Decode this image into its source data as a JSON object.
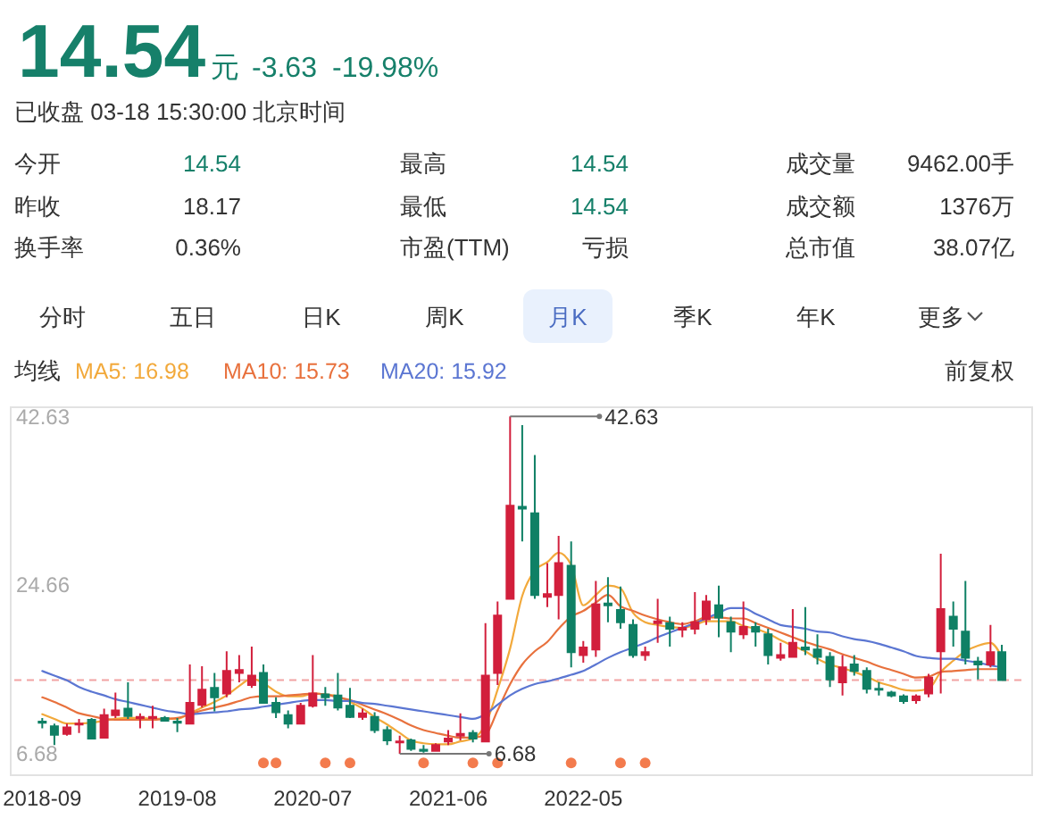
{
  "chart_data": {
    "type": "candlestick",
    "title": "14.54",
    "subtitle": "已收盘 03-18 15:30:00 北京时间",
    "legend_title": "均线",
    "legend": "top left",
    "annotations": [
      "元",
      "-3.63",
      "-19.98%",
      "今开",
      "14.54",
      "最高",
      "14.54",
      "成交量",
      "9462.00手",
      "昨收",
      "18.17",
      "最低",
      "14.54",
      "成交额",
      "1376万",
      "换手率",
      "0.36%",
      "市盈(TTM)",
      "亏损",
      "总市值",
      "38.07亿",
      "分时",
      "五日",
      "日K",
      "周K",
      "月K",
      "季K",
      "年K",
      "更多",
      "前复权",
      {
        "text": "42.63",
        "x": "2021-11",
        "y": 42.63
      },
      {
        "text": "6.68",
        "x": "2021-02",
        "y": 6.68
      }
    ],
    "x": [
      "2018-09",
      "2018-10",
      "2018-11",
      "2018-12",
      "2019-01",
      "2019-02",
      "2019-03",
      "2019-04",
      "2019-05",
      "2019-06",
      "2019-07",
      "2019-08",
      "2019-09",
      "2019-10",
      "2019-11",
      "2019-12",
      "2020-01",
      "2020-02",
      "2020-03",
      "2020-04",
      "2020-05",
      "2020-06",
      "2020-07",
      "2020-08",
      "2020-09",
      "2020-10",
      "2020-11",
      "2020-12",
      "2021-01",
      "2021-02",
      "2021-03",
      "2021-04",
      "2021-05",
      "2021-06",
      "2021-07",
      "2021-08",
      "2021-09",
      "2021-10",
      "2021-11",
      "2021-12",
      "2022-01",
      "2022-02",
      "2022-03",
      "2022-04",
      "2022-05",
      "2022-06",
      "2022-07",
      "2022-08",
      "2022-09",
      "2022-10",
      "2022-11",
      "2022-12",
      "2023-01",
      "2023-02",
      "2023-03",
      "2023-04",
      "2023-05",
      "2023-06",
      "2023-07",
      "2023-08",
      "2023-09",
      "2023-10",
      "2023-11",
      "2023-12",
      "2024-01",
      "2024-02",
      "2024-03",
      "2024-04",
      "2024-05",
      "2024-06",
      "2024-07",
      "2024-08",
      "2024-09",
      "2024-10",
      "2024-11",
      "2024-12",
      "2025-01",
      "2025-02",
      "2025-03"
    ],
    "ohlc": [
      [
        10.1,
        10.5,
        9.4,
        10.0
      ],
      [
        9.6,
        9.9,
        7.6,
        8.7
      ],
      [
        8.8,
        9.9,
        8.6,
        9.5
      ],
      [
        9.8,
        10.4,
        8.9,
        9.9
      ],
      [
        10.3,
        10.5,
        8.2,
        8.3
      ],
      [
        8.4,
        11.5,
        8.3,
        10.8
      ],
      [
        10.8,
        13.2,
        10.5,
        11.3
      ],
      [
        11.5,
        14.3,
        10.4,
        10.7
      ],
      [
        10.5,
        11.0,
        9.4,
        10.6
      ],
      [
        10.5,
        11.8,
        9.4,
        10.6
      ],
      [
        10.5,
        10.7,
        10.1,
        10.2
      ],
      [
        10.1,
        10.5,
        9.0,
        10.0
      ],
      [
        9.9,
        16.2,
        9.8,
        12.1
      ],
      [
        11.9,
        16.0,
        11.6,
        13.5
      ],
      [
        13.7,
        15.3,
        11.2,
        12.7
      ],
      [
        13.1,
        17.6,
        12.7,
        15.5
      ],
      [
        15.3,
        17.2,
        14.3,
        15.6
      ],
      [
        14.0,
        18.1,
        13.7,
        15.0
      ],
      [
        15.3,
        16.2,
        12.0,
        12.1
      ],
      [
        12.1,
        12.7,
        10.5,
        11.1
      ],
      [
        10.8,
        11.3,
        9.4,
        9.9
      ],
      [
        9.9,
        12.1,
        9.8,
        11.8
      ],
      [
        11.8,
        17.2,
        11.6,
        13.1
      ],
      [
        13.0,
        13.8,
        11.8,
        12.7
      ],
      [
        12.9,
        15.3,
        11.3,
        11.6
      ],
      [
        11.8,
        13.7,
        10.5,
        10.6
      ],
      [
        10.6,
        11.5,
        10.3,
        11.0
      ],
      [
        10.6,
        11.1,
        8.9,
        9.2
      ],
      [
        9.2,
        9.6,
        7.6,
        8.1
      ],
      [
        7.9,
        8.6,
        6.68,
        8.0
      ],
      [
        8.1,
        8.3,
        7.0,
        7.2
      ],
      [
        7.1,
        7.6,
        6.8,
        7.0
      ],
      [
        7.0,
        7.8,
        6.9,
        7.6
      ],
      [
        8.0,
        9.2,
        7.6,
        8.3
      ],
      [
        8.6,
        11.0,
        8.1,
        8.8
      ],
      [
        8.9,
        9.2,
        7.9,
        8.3
      ],
      [
        8.0,
        20.6,
        7.9,
        15.0
      ],
      [
        15.3,
        22.9,
        14.0,
        21.4
      ],
      [
        23.2,
        42.63,
        23.1,
        33.1
      ],
      [
        33.0,
        41.7,
        29.3,
        32.8
      ],
      [
        32.3,
        38.5,
        23.2,
        23.6
      ],
      [
        23.4,
        27.0,
        22.3,
        23.7
      ],
      [
        23.6,
        29.9,
        21.0,
        27.0
      ],
      [
        26.7,
        29.3,
        15.9,
        17.5
      ],
      [
        17.2,
        18.7,
        16.4,
        18.0
      ],
      [
        17.8,
        25.1,
        17.0,
        22.6
      ],
      [
        22.7,
        25.5,
        20.7,
        22.5
      ],
      [
        22.0,
        24.5,
        20.0,
        20.7
      ],
      [
        20.4,
        21.0,
        16.9,
        17.2
      ],
      [
        17.2,
        18.1,
        16.6,
        17.5
      ],
      [
        20.6,
        23.2,
        18.5,
        20.8
      ],
      [
        20.6,
        21.3,
        18.1,
        20.0
      ],
      [
        19.9,
        20.7,
        19.1,
        20.1
      ],
      [
        20.0,
        23.9,
        19.4,
        20.7
      ],
      [
        21.0,
        23.6,
        20.4,
        22.9
      ],
      [
        22.5,
        24.6,
        19.1,
        21.2
      ],
      [
        20.7,
        21.3,
        17.5,
        19.7
      ],
      [
        19.4,
        22.9,
        18.9,
        20.2
      ],
      [
        20.2,
        20.7,
        18.1,
        19.7
      ],
      [
        19.4,
        20.0,
        16.2,
        17.2
      ],
      [
        16.9,
        18.5,
        16.6,
        17.2
      ],
      [
        17.0,
        22.1,
        16.9,
        18.5
      ],
      [
        18.0,
        22.3,
        17.2,
        17.8
      ],
      [
        17.8,
        19.4,
        16.2,
        17.0
      ],
      [
        17.0,
        17.5,
        13.8,
        14.6
      ],
      [
        14.3,
        17.2,
        12.9,
        15.9
      ],
      [
        16.2,
        17.2,
        15.0,
        15.5
      ],
      [
        15.5,
        15.9,
        13.1,
        13.6
      ],
      [
        13.6,
        14.3,
        12.9,
        13.5
      ],
      [
        13.2,
        13.4,
        12.7,
        12.9
      ],
      [
        12.8,
        13.0,
        12.0,
        12.3
      ],
      [
        12.4,
        13.0,
        12.0,
        12.8
      ],
      [
        13.1,
        15.2,
        12.7,
        14.8
      ],
      [
        17.6,
        28.0,
        13.1,
        22.1
      ],
      [
        21.3,
        22.9,
        18.1,
        20.0
      ],
      [
        19.7,
        25.1,
        16.2,
        16.9
      ],
      [
        16.5,
        17.0,
        14.6,
        16.2
      ],
      [
        16.2,
        20.4,
        15.9,
        17.5
      ],
      [
        17.5,
        18.3,
        14.5,
        14.54
      ]
    ],
    "colors": [
      "#0f8065",
      "#0f8065",
      "#d21f3c",
      "#d21f3c",
      "#0f8065",
      "#d21f3c",
      "#d21f3c",
      "#0f8065",
      "#d21f3c",
      "#d21f3c",
      "#0f8065",
      "#0f8065",
      "#d21f3c",
      "#d21f3c",
      "#0f8065",
      "#d21f3c",
      "#d21f3c",
      "#d21f3c",
      "#0f8065",
      "#0f8065",
      "#0f8065",
      "#d21f3c",
      "#d21f3c",
      "#0f8065",
      "#0f8065",
      "#0f8065",
      "#d21f3c",
      "#0f8065",
      "#0f8065",
      "#d21f3c",
      "#0f8065",
      "#0f8065",
      "#d21f3c",
      "#d21f3c",
      "#d21f3c",
      "#0f8065",
      "#d21f3c",
      "#d21f3c",
      "#d21f3c",
      "#0f8065",
      "#0f8065",
      "#d21f3c",
      "#d21f3c",
      "#0f8065",
      "#d21f3c",
      "#d21f3c",
      "#0f8065",
      "#0f8065",
      "#0f8065",
      "#d21f3c",
      "#d21f3c",
      "#0f8065",
      "#d21f3c",
      "#d21f3c",
      "#d21f3c",
      "#0f8065",
      "#0f8065",
      "#d21f3c",
      "#0f8065",
      "#0f8065",
      "#d21f3c",
      "#d21f3c",
      "#0f8065",
      "#0f8065",
      "#0f8065",
      "#d21f3c",
      "#0f8065",
      "#0f8065",
      "#0f8065",
      "#0f8065",
      "#0f8065",
      "#d21f3c",
      "#d21f3c",
      "#d21f3c",
      "#0f8065",
      "#0f8065",
      "#0f8065",
      "#d21f3c",
      "#0f8065"
    ],
    "series": [
      {
        "type": "line",
        "name": "MA5: 16.98",
        "color": "#f2a93b",
        "values": [
          10.9,
          10.4,
          9.9,
          9.9,
          10.0,
          10.2,
          10.4,
          10.5,
          10.5,
          10.4,
          10.4,
          10.4,
          11.0,
          11.6,
          12.2,
          12.9,
          13.9,
          14.7,
          14.2,
          13.3,
          12.8,
          12.8,
          13.1,
          13.0,
          12.8,
          12.2,
          11.5,
          10.6,
          9.8,
          8.9,
          8.1,
          7.8,
          7.7,
          7.7,
          8.0,
          8.3,
          9.8,
          13.5,
          17.9,
          23.5,
          26.2,
          27.1,
          28.1,
          26.8,
          22.5,
          23.6,
          24.6,
          24.3,
          21.7,
          20.7,
          20.4,
          20.2,
          20.1,
          20.4,
          20.8,
          20.8,
          20.8,
          20.3,
          20.0,
          19.5,
          18.8,
          18.2,
          17.6,
          16.8,
          16.2,
          15.8,
          15.4,
          14.9,
          14.3,
          13.9,
          13.5,
          13.4,
          13.6,
          15.4,
          16.6,
          17.6,
          18.2,
          18.5,
          17.0
        ]
      },
      {
        "type": "line",
        "name": "MA10: 15.73",
        "color": "#e8713d",
        "values": [
          12.7,
          12.2,
          11.6,
          11.0,
          10.7,
          10.4,
          10.3,
          10.3,
          10.3,
          10.3,
          10.4,
          10.5,
          10.9,
          11.3,
          11.6,
          11.9,
          12.3,
          12.7,
          12.8,
          12.8,
          12.9,
          13.0,
          13.1,
          13.0,
          12.7,
          12.4,
          11.9,
          11.4,
          10.9,
          10.3,
          9.7,
          9.2,
          8.9,
          8.6,
          8.4,
          8.4,
          8.7,
          11.3,
          14.1,
          16.2,
          17.6,
          18.6,
          20.0,
          21.3,
          21.9,
          22.8,
          23.6,
          22.4,
          21.9,
          21.4,
          21.0,
          20.7,
          20.5,
          20.8,
          21.2,
          21.2,
          21.1,
          21.1,
          20.6,
          20.1,
          19.6,
          19.1,
          18.6,
          18.2,
          17.8,
          17.3,
          16.9,
          16.5,
          16.0,
          15.6,
          15.2,
          14.8,
          14.9,
          15.4,
          15.5,
          15.6,
          15.7,
          15.7,
          15.7
        ]
      },
      {
        "type": "line",
        "name": "MA20: 15.92",
        "color": "#5b76d2",
        "values": [
          15.5,
          15.0,
          14.5,
          13.8,
          13.3,
          12.9,
          12.5,
          12.2,
          11.9,
          11.6,
          11.3,
          11.1,
          10.9,
          11.0,
          11.1,
          11.2,
          11.4,
          11.5,
          11.7,
          11.9,
          12.1,
          12.3,
          12.4,
          12.4,
          12.3,
          12.3,
          12.1,
          12.0,
          11.8,
          11.6,
          11.4,
          11.2,
          11.0,
          10.8,
          10.6,
          10.4,
          10.9,
          11.9,
          12.9,
          13.6,
          14.1,
          14.4,
          14.7,
          15.1,
          15.5,
          16.2,
          16.9,
          17.5,
          18.0,
          18.5,
          19.1,
          19.6,
          20.1,
          20.6,
          21.1,
          21.7,
          22.2,
          22.2,
          21.6,
          21.0,
          20.4,
          20.2,
          20.0,
          19.7,
          19.6,
          19.2,
          18.9,
          18.7,
          18.4,
          18.0,
          17.6,
          17.1,
          16.9,
          16.8,
          16.8,
          16.6,
          16.4,
          16.1,
          15.9
        ]
      },
      {
        "type": "scatter",
        "color": "#f37b4d",
        "marker": "circle",
        "x": [
          "2020-03",
          "2020-04",
          "2020-08",
          "2020-10",
          "2021-04",
          "2021-08",
          "2021-10",
          "2022-04",
          "2022-08",
          "2022-10"
        ],
        "values": [
          5.7,
          5.7,
          5.7,
          5.7,
          5.7,
          5.7,
          5.7,
          5.7,
          5.7,
          5.7
        ]
      }
    ],
    "ref_lines": [
      {
        "axis": "y",
        "value": 14.54,
        "color": "#f2a3a3",
        "line_style": "dashed"
      }
    ],
    "xlim": [
      "2018-06-15",
      "2025-05-15"
    ],
    "xticks": [
      "2018-09",
      "2019-08",
      "2020-07",
      "2021-06",
      "2022-05"
    ],
    "ylim": [
      4.4,
      43.6
    ],
    "yticks": [
      6.68,
      24.66,
      42.63
    ]
  }
}
